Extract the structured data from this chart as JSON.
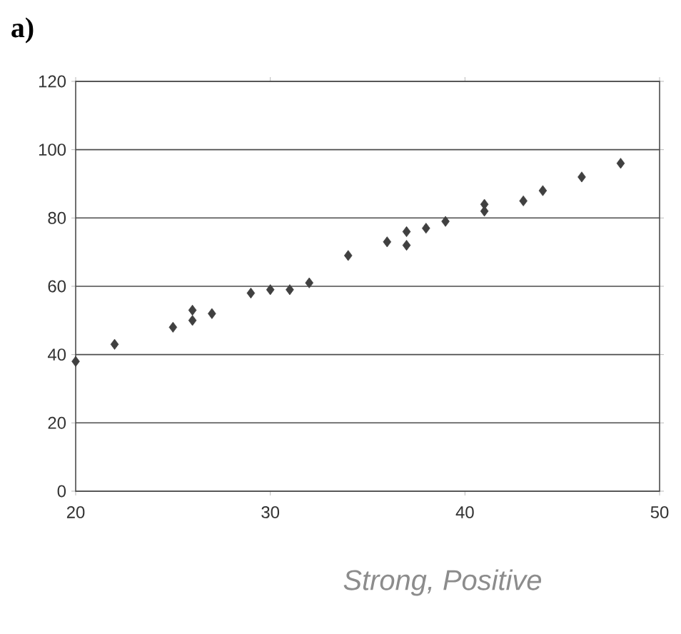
{
  "chart_data": {
    "type": "scatter",
    "title": "a)",
    "annotations": [
      "Strong, Positive"
    ],
    "x": [
      20,
      22,
      25,
      26,
      26,
      27,
      29,
      30,
      31,
      32,
      34,
      36,
      37,
      37,
      38,
      39,
      41,
      41,
      43,
      44,
      46,
      48
    ],
    "values": [
      38,
      43,
      48,
      50,
      53,
      52,
      58,
      59,
      59,
      61,
      69,
      73,
      72,
      76,
      77,
      79,
      82,
      84,
      85,
      88,
      92,
      96
    ],
    "color": "#404040",
    "marker": "diamond",
    "xlim": [
      20,
      50
    ],
    "ylim": [
      0,
      120
    ],
    "xticks": [
      20,
      30,
      40,
      50
    ],
    "yticks": [
      0,
      20,
      40,
      60,
      80,
      100,
      120
    ],
    "grid": "y"
  }
}
